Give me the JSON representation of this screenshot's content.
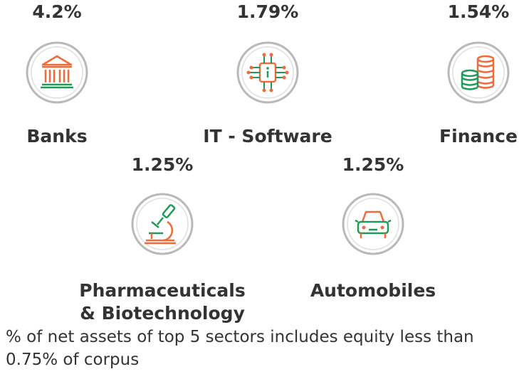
{
  "chart_data": {
    "type": "bar",
    "categories": [
      "Banks",
      "IT - Software",
      "Finance",
      "Pharmaceuticals & Biotechnology",
      "Automobiles"
    ],
    "values": [
      4.2,
      1.79,
      1.54,
      1.25,
      1.25
    ],
    "value_labels": [
      "4.2%",
      "1.79%",
      "1.54%",
      "1.25%",
      "1.25%"
    ]
  },
  "sectors": [
    {
      "pct": "4.2%",
      "label_lines": [
        "Banks"
      ],
      "icon": "bank-icon"
    },
    {
      "pct": "1.79%",
      "label_lines": [
        "IT - Software"
      ],
      "icon": "chip-icon"
    },
    {
      "pct": "1.54%",
      "label_lines": [
        "Finance"
      ],
      "icon": "coins-icon"
    },
    {
      "pct": "1.25%",
      "label_lines": [
        "Pharmaceuticals",
        "& Biotechnology"
      ],
      "icon": "microscope-icon"
    },
    {
      "pct": "1.25%",
      "label_lines": [
        "Automobiles"
      ],
      "icon": "car-icon"
    }
  ],
  "footnote": "% of net assets of top 5 sectors includes equity less than 0.75% of corpus",
  "colors": {
    "ring": "#b9b9b9",
    "green": "#1f9a5a",
    "orange": "#f06a3a",
    "text": "#333333"
  }
}
